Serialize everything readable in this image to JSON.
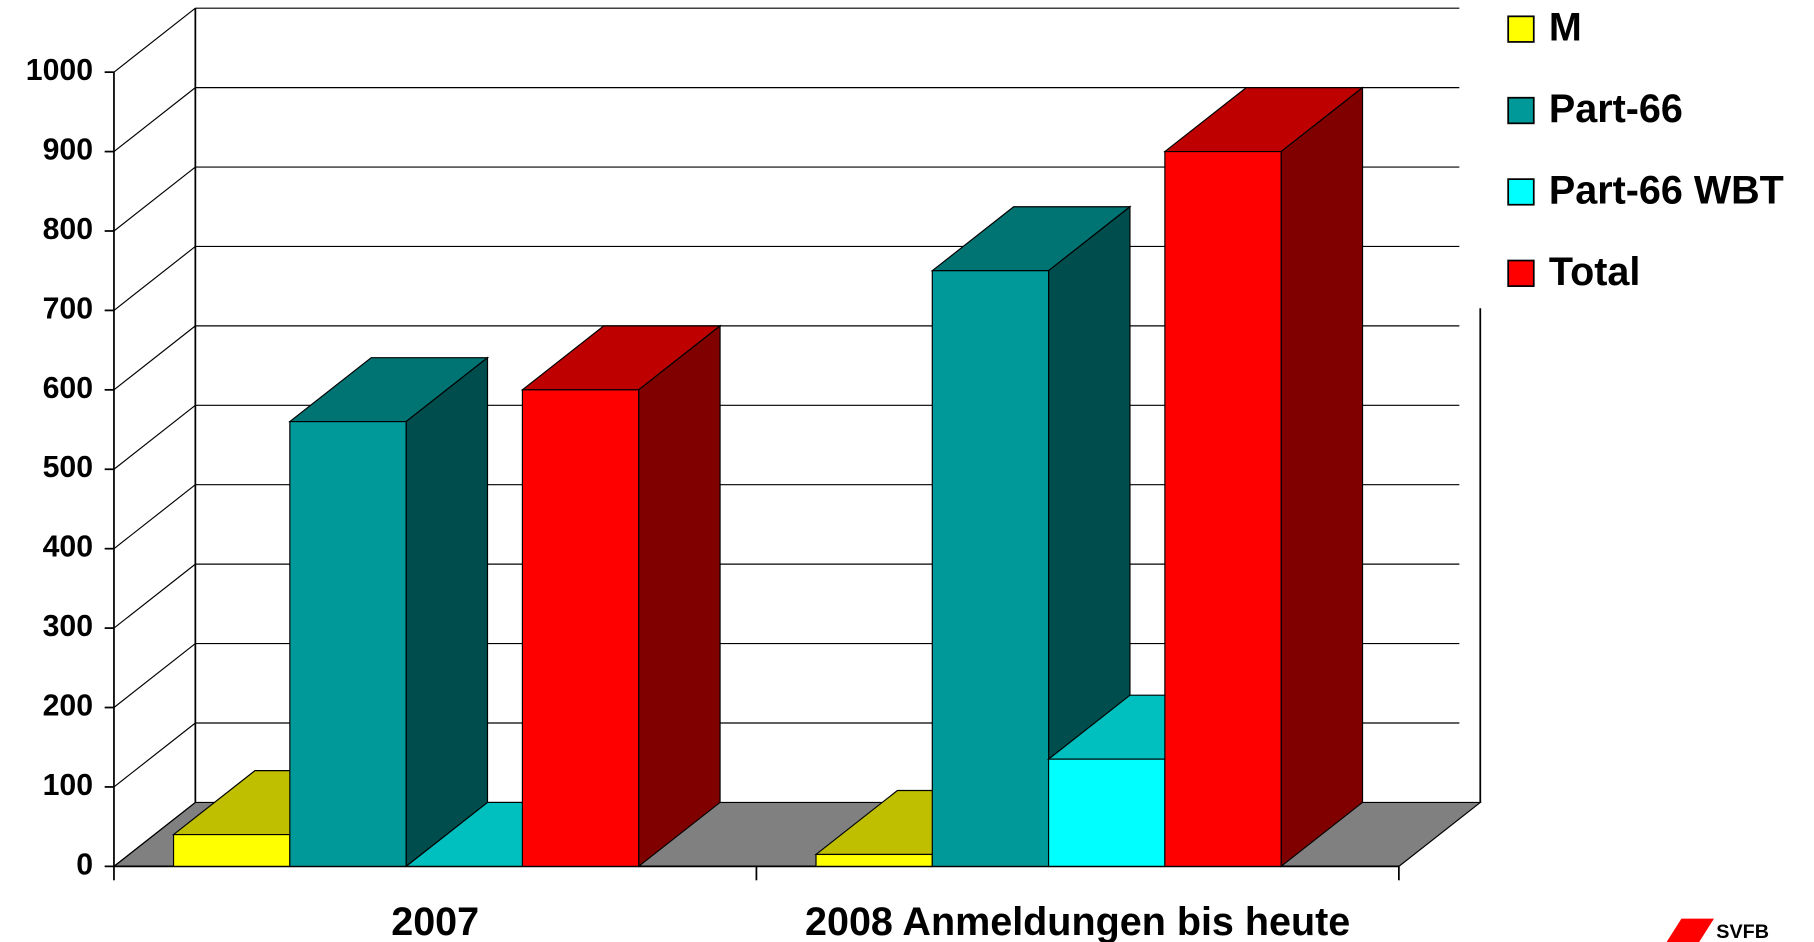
{
  "chart_data": {
    "type": "bar3d",
    "categories": [
      "2007",
      "2008 Anmeldungen bis heute"
    ],
    "series": [
      {
        "name": "M",
        "color": "#ffff00",
        "values": [
          40,
          15
        ]
      },
      {
        "name": "Part-66",
        "color": "#009999",
        "values": [
          560,
          750
        ]
      },
      {
        "name": "Part-66 WBT",
        "color": "#00ffff",
        "values": [
          0,
          135
        ]
      },
      {
        "name": "Total",
        "color": "#ff0000",
        "values": [
          600,
          900
        ]
      }
    ],
    "ylim": [
      0,
      1000
    ],
    "yticks": [
      0,
      100,
      200,
      300,
      400,
      500,
      600,
      700,
      800,
      900,
      1000
    ],
    "grid": true,
    "legend": "top-right",
    "floor_color": "#808080",
    "logo": "SVFB"
  }
}
